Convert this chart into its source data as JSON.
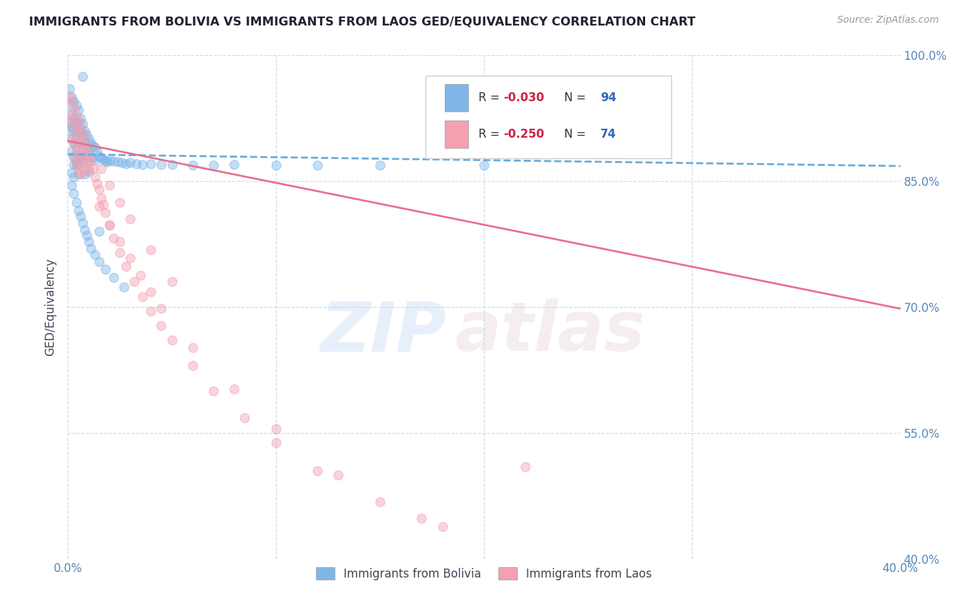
{
  "title": "IMMIGRANTS FROM BOLIVIA VS IMMIGRANTS FROM LAOS GED/EQUIVALENCY CORRELATION CHART",
  "source_text": "Source: ZipAtlas.com",
  "ylabel": "GED/Equivalency",
  "xlim": [
    0.0,
    0.4
  ],
  "ylim": [
    0.4,
    1.0
  ],
  "xticks": [
    0.0,
    0.1,
    0.2,
    0.3,
    0.4
  ],
  "yticks": [
    0.4,
    0.55,
    0.7,
    0.85,
    1.0
  ],
  "xtick_labels": [
    "0.0%",
    "",
    "",
    "",
    "40.0%"
  ],
  "ytick_labels": [
    "40.0%",
    "55.0%",
    "70.0%",
    "85.0%",
    "100.0%"
  ],
  "bolivia_color": "#7EB6E8",
  "laos_color": "#F4A0B0",
  "bolivia_line_color": "#6AAAD8",
  "laos_line_color": "#E87090",
  "grid_color": "#C8DDF0",
  "background_color": "#FFFFFF",
  "title_color": "#222233",
  "axis_label_color": "#444455",
  "tick_label_color": "#5588BB",
  "source_color": "#999999",
  "r_text_color": "#CC2244",
  "n_text_color": "#3366BB",
  "scatter_size": 90,
  "scatter_alpha": 0.45,
  "trend_linewidth": 2.0,
  "bolivia_trend_x": [
    0.0,
    0.4
  ],
  "bolivia_trend_y": [
    0.882,
    0.868
  ],
  "laos_trend_x": [
    0.0,
    0.4
  ],
  "laos_trend_y": [
    0.898,
    0.698
  ],
  "bolivia_scatter_x": [
    0.001,
    0.001,
    0.001,
    0.001,
    0.002,
    0.002,
    0.002,
    0.002,
    0.002,
    0.003,
    0.003,
    0.003,
    0.003,
    0.003,
    0.003,
    0.004,
    0.004,
    0.004,
    0.004,
    0.004,
    0.005,
    0.005,
    0.005,
    0.005,
    0.005,
    0.005,
    0.005,
    0.006,
    0.006,
    0.006,
    0.006,
    0.007,
    0.007,
    0.007,
    0.007,
    0.008,
    0.008,
    0.008,
    0.009,
    0.009,
    0.009,
    0.01,
    0.01,
    0.011,
    0.011,
    0.012,
    0.012,
    0.013,
    0.013,
    0.014,
    0.015,
    0.016,
    0.017,
    0.018,
    0.019,
    0.02,
    0.022,
    0.024,
    0.026,
    0.028,
    0.03,
    0.033,
    0.036,
    0.04,
    0.045,
    0.05,
    0.06,
    0.07,
    0.08,
    0.1,
    0.12,
    0.15,
    0.2,
    0.007,
    0.004,
    0.003,
    0.002,
    0.002,
    0.003,
    0.004,
    0.005,
    0.006,
    0.007,
    0.008,
    0.009,
    0.01,
    0.011,
    0.013,
    0.015,
    0.018,
    0.022,
    0.027,
    0.015,
    0.01,
    0.008
  ],
  "bolivia_scatter_y": [
    0.96,
    0.94,
    0.92,
    0.91,
    0.95,
    0.93,
    0.915,
    0.9,
    0.885,
    0.945,
    0.925,
    0.91,
    0.895,
    0.88,
    0.87,
    0.94,
    0.92,
    0.905,
    0.89,
    0.875,
    0.935,
    0.92,
    0.908,
    0.895,
    0.882,
    0.87,
    0.858,
    0.925,
    0.91,
    0.895,
    0.88,
    0.918,
    0.903,
    0.888,
    0.873,
    0.91,
    0.895,
    0.88,
    0.905,
    0.89,
    0.875,
    0.9,
    0.885,
    0.895,
    0.88,
    0.892,
    0.878,
    0.89,
    0.875,
    0.885,
    0.88,
    0.878,
    0.876,
    0.874,
    0.873,
    0.875,
    0.874,
    0.873,
    0.872,
    0.871,
    0.872,
    0.871,
    0.87,
    0.871,
    0.87,
    0.87,
    0.869,
    0.869,
    0.87,
    0.869,
    0.869,
    0.869,
    0.869,
    0.975,
    0.87,
    0.855,
    0.86,
    0.845,
    0.835,
    0.825,
    0.815,
    0.808,
    0.8,
    0.792,
    0.785,
    0.778,
    0.77,
    0.762,
    0.754,
    0.745,
    0.735,
    0.724,
    0.79,
    0.862,
    0.858
  ],
  "laos_scatter_x": [
    0.001,
    0.001,
    0.002,
    0.002,
    0.002,
    0.003,
    0.003,
    0.003,
    0.003,
    0.004,
    0.004,
    0.004,
    0.004,
    0.005,
    0.005,
    0.005,
    0.005,
    0.006,
    0.006,
    0.006,
    0.006,
    0.007,
    0.007,
    0.007,
    0.008,
    0.008,
    0.008,
    0.009,
    0.009,
    0.01,
    0.01,
    0.011,
    0.012,
    0.013,
    0.014,
    0.015,
    0.016,
    0.017,
    0.018,
    0.02,
    0.022,
    0.025,
    0.028,
    0.032,
    0.036,
    0.04,
    0.045,
    0.05,
    0.06,
    0.07,
    0.085,
    0.1,
    0.12,
    0.15,
    0.18,
    0.22,
    0.015,
    0.02,
    0.025,
    0.03,
    0.035,
    0.04,
    0.045,
    0.06,
    0.08,
    0.1,
    0.13,
    0.17,
    0.016,
    0.02,
    0.025,
    0.03,
    0.04,
    0.05
  ],
  "laos_scatter_y": [
    0.952,
    0.928,
    0.945,
    0.922,
    0.9,
    0.938,
    0.915,
    0.895,
    0.878,
    0.93,
    0.908,
    0.888,
    0.87,
    0.922,
    0.902,
    0.882,
    0.862,
    0.915,
    0.895,
    0.875,
    0.858,
    0.908,
    0.888,
    0.868,
    0.9,
    0.88,
    0.862,
    0.89,
    0.872,
    0.882,
    0.865,
    0.874,
    0.865,
    0.855,
    0.847,
    0.84,
    0.83,
    0.822,
    0.812,
    0.798,
    0.782,
    0.765,
    0.748,
    0.73,
    0.712,
    0.695,
    0.678,
    0.661,
    0.63,
    0.6,
    0.568,
    0.538,
    0.505,
    0.468,
    0.438,
    0.51,
    0.82,
    0.798,
    0.778,
    0.758,
    0.738,
    0.718,
    0.698,
    0.652,
    0.602,
    0.555,
    0.5,
    0.448,
    0.865,
    0.845,
    0.825,
    0.805,
    0.768,
    0.73
  ],
  "bottom_legend_bolivia": "Immigrants from Bolivia",
  "bottom_legend_laos": "Immigrants from Laos"
}
